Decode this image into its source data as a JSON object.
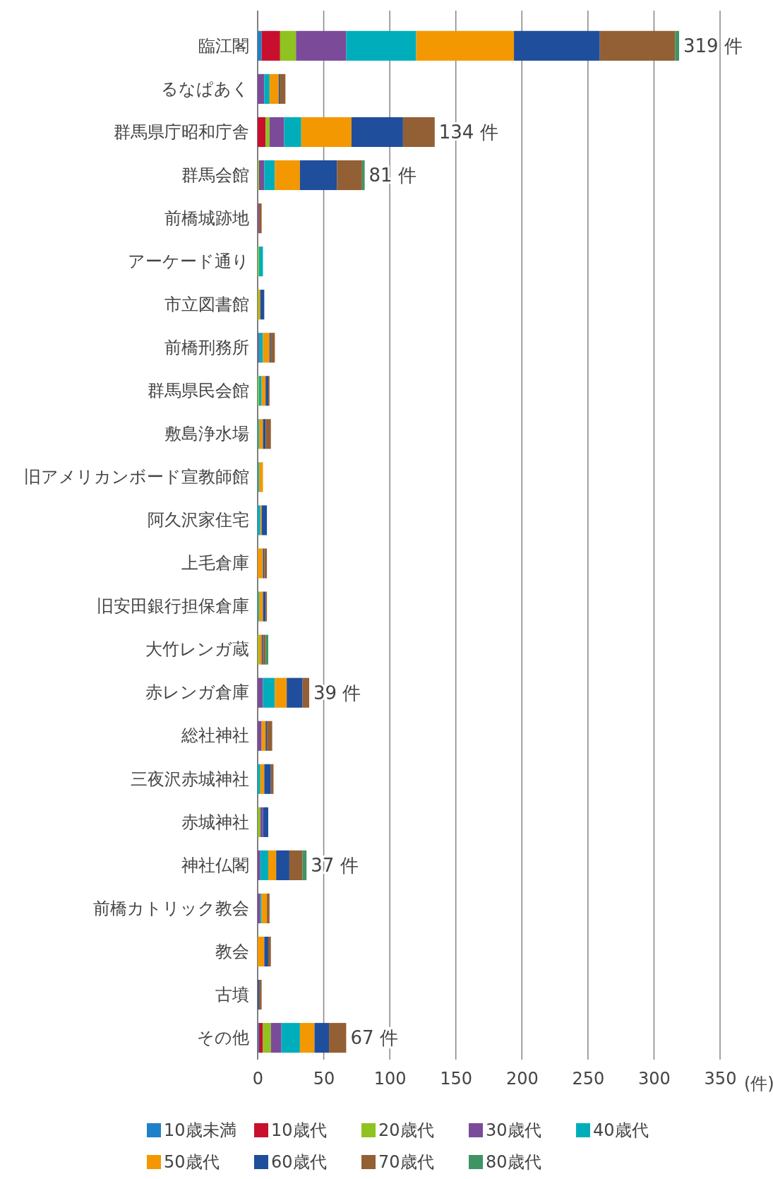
{
  "chart_data": {
    "type": "bar",
    "orientation": "horizontal",
    "stacked": true,
    "categories": [
      "臨江閣",
      "るなぱあく",
      "群馬県庁昭和庁舎",
      "群馬会館",
      "前橋城跡地",
      "アーケード通り",
      "市立図書館",
      "前橋刑務所",
      "群馬県民会館",
      "敷島浄水場",
      "旧アメリカンボード宣教師館",
      "阿久沢家住宅",
      "上毛倉庫",
      "旧安田銀行担保倉庫",
      "大竹レンガ蔵",
      "赤レンガ倉庫",
      "総社神社",
      "三夜沢赤城神社",
      "赤城神社",
      "神社仏閣",
      "前橋カトリック教会",
      "教会",
      "古墳",
      "その他"
    ],
    "series": [
      {
        "name": "10歳未満",
        "color": "#1f80c8",
        "values": [
          3,
          0,
          0,
          0,
          0,
          0,
          0,
          0,
          0,
          0,
          0,
          0,
          0,
          0,
          0,
          0,
          0,
          0,
          0,
          0,
          0,
          0,
          0,
          1
        ]
      },
      {
        "name": "10歳代",
        "color": "#c8102e",
        "values": [
          14,
          0,
          6,
          0,
          0,
          0,
          0,
          0,
          0,
          0,
          0,
          0,
          0,
          0,
          0,
          0,
          0,
          0,
          0,
          0,
          0,
          0,
          0,
          3
        ]
      },
      {
        "name": "20歳代",
        "color": "#8fc31f",
        "values": [
          12,
          0,
          3,
          1,
          0,
          1,
          1,
          0,
          1,
          0,
          0,
          0,
          0,
          0,
          1,
          0,
          0,
          0,
          2,
          0,
          0,
          0,
          0,
          6
        ]
      },
      {
        "name": "30歳代",
        "color": "#7b4b9a",
        "values": [
          38,
          5,
          11,
          4,
          1,
          0,
          0,
          1,
          0,
          0,
          0,
          0,
          0,
          0,
          0,
          4,
          3,
          0,
          2,
          2,
          2,
          0,
          0,
          8
        ]
      },
      {
        "name": "40歳代",
        "color": "#00aebb",
        "values": [
          53,
          4,
          13,
          8,
          0,
          3,
          0,
          3,
          2,
          1,
          1,
          2,
          0,
          1,
          0,
          9,
          0,
          2,
          0,
          6,
          1,
          0,
          0,
          14
        ]
      },
      {
        "name": "50歳代",
        "color": "#f39800",
        "values": [
          74,
          7,
          38,
          19,
          0,
          0,
          1,
          5,
          3,
          3,
          3,
          1,
          4,
          3,
          2,
          9,
          3,
          3,
          0,
          6,
          4,
          5,
          0,
          11
        ]
      },
      {
        "name": "60歳代",
        "color": "#1f4e9c",
        "values": [
          65,
          1,
          39,
          28,
          0,
          0,
          3,
          1,
          2,
          2,
          0,
          4,
          1,
          2,
          1,
          12,
          1,
          5,
          4,
          10,
          0,
          3,
          1,
          11
        ]
      },
      {
        "name": "70歳代",
        "color": "#935f34",
        "values": [
          57,
          4,
          24,
          19,
          2,
          0,
          0,
          3,
          1,
          4,
          0,
          0,
          2,
          1,
          2,
          5,
          4,
          2,
          0,
          10,
          2,
          2,
          2,
          13
        ]
      },
      {
        "name": "80歳代",
        "color": "#3f9464",
        "values": [
          3,
          0,
          0,
          2,
          0,
          0,
          0,
          0,
          0,
          0,
          0,
          0,
          0,
          0,
          2,
          0,
          0,
          0,
          0,
          3,
          0,
          0,
          0,
          0
        ]
      }
    ],
    "totals": [
      "319 件",
      null,
      "134 件",
      "81 件",
      null,
      null,
      null,
      null,
      null,
      null,
      null,
      null,
      null,
      null,
      null,
      "39 件",
      null,
      null,
      null,
      "37 件",
      null,
      null,
      null,
      "67 件"
    ],
    "xlim": [
      0,
      350
    ],
    "xticks": [
      0,
      50,
      100,
      150,
      200,
      250,
      300,
      350
    ],
    "xlabel": "(件)",
    "grid": "x",
    "legend": "bottom"
  }
}
